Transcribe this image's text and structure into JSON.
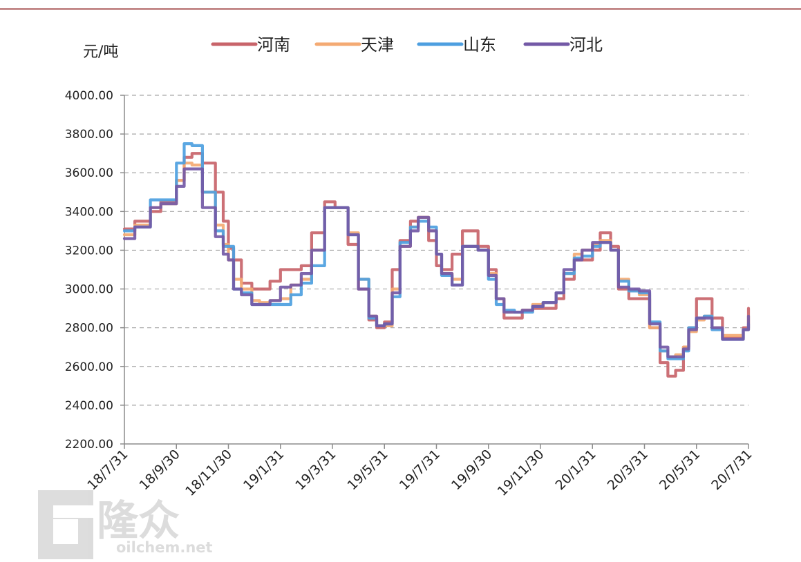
{
  "watermark": {
    "brand": "隆众",
    "url": "oilchem.net"
  },
  "chart_data": {
    "type": "line",
    "unit_label": "元/吨",
    "xlabel": "",
    "ylabel": "",
    "ylim": [
      2200,
      4000
    ],
    "yticks": [
      "4000.00",
      "3800.00",
      "3600.00",
      "3400.00",
      "3200.00",
      "3000.00",
      "2800.00",
      "2600.00",
      "2400.00",
      "2200.00"
    ],
    "xticks": [
      "18/7/31",
      "18/9/30",
      "18/11/30",
      "19/1/31",
      "19/3/31",
      "19/5/31",
      "19/7/31",
      "19/9/30",
      "19/11/30",
      "20/1/31",
      "20/3/31",
      "20/5/31",
      "20/7/31"
    ],
    "grid": "horizontal dashed",
    "legend_position": "top",
    "series": [
      {
        "name": "河南",
        "color": "#c8646a",
        "x": [
          0,
          0.2,
          0.5,
          0.7,
          1,
          1.15,
          1.3,
          1.5,
          1.75,
          1.9,
          2,
          2.1,
          2.25,
          2.45,
          2.6,
          2.8,
          3,
          3.2,
          3.4,
          3.6,
          3.85,
          4.05,
          4.3,
          4.5,
          4.7,
          4.85,
          5,
          5.15,
          5.3,
          5.5,
          5.65,
          5.85,
          6,
          6.1,
          6.3,
          6.5,
          6.65,
          6.8,
          7,
          7.15,
          7.3,
          7.5,
          7.65,
          7.85,
          8.05,
          8.3,
          8.45,
          8.65,
          8.8,
          9,
          9.15,
          9.35,
          9.5,
          9.7,
          9.9,
          10.1,
          10.3,
          10.45,
          10.6,
          10.75,
          10.85,
          11,
          11.15,
          11.3,
          11.5,
          11.75,
          11.9,
          12
        ],
        "values": [
          3310,
          3350,
          3400,
          3450,
          3560,
          3680,
          3700,
          3650,
          3500,
          3350,
          3210,
          3150,
          3030,
          3000,
          3000,
          3040,
          3100,
          3100,
          3120,
          3290,
          3450,
          3420,
          3230,
          3000,
          2840,
          2800,
          2830,
          3100,
          3250,
          3350,
          3370,
          3250,
          3120,
          3100,
          3180,
          3300,
          3300,
          3220,
          3100,
          2950,
          2850,
          2850,
          2890,
          2900,
          2900,
          2950,
          3050,
          3150,
          3150,
          3200,
          3290,
          3220,
          3000,
          2950,
          2950,
          2800,
          2620,
          2550,
          2580,
          2700,
          2800,
          2950,
          2950,
          2850,
          2750,
          2750,
          2800,
          2900
        ]
      },
      {
        "name": "天津",
        "color": "#f4aa73",
        "x": [
          0,
          0.2,
          0.5,
          0.7,
          1,
          1.15,
          1.3,
          1.5,
          1.75,
          1.9,
          2,
          2.1,
          2.25,
          2.45,
          2.6,
          2.8,
          3,
          3.2,
          3.4,
          3.6,
          3.85,
          4.05,
          4.3,
          4.5,
          4.7,
          4.85,
          5,
          5.15,
          5.3,
          5.5,
          5.65,
          5.85,
          6,
          6.1,
          6.3,
          6.5,
          6.65,
          6.8,
          7,
          7.15,
          7.3,
          7.5,
          7.65,
          7.85,
          8.05,
          8.3,
          8.45,
          8.65,
          8.8,
          9,
          9.15,
          9.35,
          9.5,
          9.7,
          9.9,
          10.1,
          10.3,
          10.45,
          10.6,
          10.75,
          10.85,
          11,
          11.15,
          11.3,
          11.5,
          11.75,
          11.9,
          12
        ],
        "values": [
          3280,
          3330,
          3420,
          3440,
          3560,
          3650,
          3640,
          3500,
          3330,
          3230,
          3150,
          3050,
          3000,
          2940,
          2930,
          2940,
          2950,
          3020,
          3050,
          3200,
          3420,
          3420,
          3290,
          3050,
          2860,
          2810,
          2810,
          3000,
          3220,
          3320,
          3370,
          3300,
          3180,
          3080,
          3050,
          3220,
          3220,
          3200,
          3080,
          2950,
          2880,
          2880,
          2890,
          2920,
          2930,
          2980,
          3080,
          3180,
          3200,
          3230,
          3250,
          3200,
          3050,
          2990,
          2970,
          2800,
          2680,
          2650,
          2660,
          2700,
          2780,
          2840,
          2860,
          2800,
          2760,
          2760,
          2790,
          2860
        ]
      },
      {
        "name": "山东",
        "color": "#4d9fe0",
        "x": [
          0,
          0.2,
          0.5,
          0.7,
          1,
          1.15,
          1.3,
          1.5,
          1.75,
          1.9,
          2,
          2.1,
          2.25,
          2.45,
          2.6,
          2.8,
          3,
          3.2,
          3.4,
          3.6,
          3.85,
          4.05,
          4.3,
          4.5,
          4.7,
          4.85,
          5,
          5.15,
          5.3,
          5.5,
          5.65,
          5.85,
          6,
          6.1,
          6.3,
          6.5,
          6.65,
          6.8,
          7,
          7.15,
          7.3,
          7.5,
          7.65,
          7.85,
          8.05,
          8.3,
          8.45,
          8.65,
          8.8,
          9,
          9.15,
          9.35,
          9.5,
          9.7,
          9.9,
          10.1,
          10.3,
          10.45,
          10.6,
          10.75,
          10.85,
          11,
          11.15,
          11.3,
          11.5,
          11.75,
          11.9,
          12
        ],
        "values": [
          3300,
          3320,
          3460,
          3460,
          3650,
          3750,
          3740,
          3500,
          3300,
          3220,
          3220,
          3000,
          2980,
          2920,
          2920,
          2920,
          2920,
          2970,
          3030,
          3120,
          3420,
          3420,
          3280,
          3050,
          2850,
          2810,
          2820,
          2960,
          3240,
          3320,
          3350,
          3320,
          3180,
          3070,
          3020,
          3220,
          3220,
          3200,
          3050,
          2920,
          2890,
          2880,
          2880,
          2910,
          2930,
          2980,
          3080,
          3160,
          3170,
          3220,
          3240,
          3200,
          3040,
          2990,
          2980,
          2830,
          2680,
          2640,
          2640,
          2680,
          2800,
          2850,
          2860,
          2790,
          2740,
          2740,
          2790,
          2820
        ]
      },
      {
        "name": "河北",
        "color": "#7359a6",
        "x": [
          0,
          0.2,
          0.5,
          0.7,
          1,
          1.15,
          1.3,
          1.5,
          1.75,
          1.9,
          2,
          2.1,
          2.25,
          2.45,
          2.6,
          2.8,
          3,
          3.2,
          3.4,
          3.6,
          3.85,
          4.05,
          4.3,
          4.5,
          4.7,
          4.85,
          5,
          5.15,
          5.3,
          5.5,
          5.65,
          5.85,
          6,
          6.1,
          6.3,
          6.5,
          6.65,
          6.8,
          7,
          7.15,
          7.3,
          7.5,
          7.65,
          7.85,
          8.05,
          8.3,
          8.45,
          8.65,
          8.8,
          9,
          9.15,
          9.35,
          9.5,
          9.7,
          9.9,
          10.1,
          10.3,
          10.45,
          10.6,
          10.75,
          10.85,
          11,
          11.15,
          11.3,
          11.5,
          11.75,
          11.9,
          12
        ],
        "values": [
          3260,
          3320,
          3420,
          3440,
          3530,
          3620,
          3620,
          3420,
          3270,
          3180,
          3150,
          3000,
          2970,
          2920,
          2920,
          2940,
          3010,
          3020,
          3080,
          3200,
          3420,
          3420,
          3280,
          3000,
          2860,
          2810,
          2820,
          2980,
          3220,
          3300,
          3370,
          3300,
          3180,
          3080,
          3020,
          3220,
          3220,
          3200,
          3070,
          2950,
          2880,
          2880,
          2890,
          2910,
          2930,
          2980,
          3100,
          3150,
          3200,
          3240,
          3240,
          3200,
          3010,
          3000,
          2990,
          2820,
          2700,
          2650,
          2650,
          2690,
          2790,
          2850,
          2850,
          2800,
          2740,
          2740,
          2790,
          2860
        ]
      }
    ]
  }
}
